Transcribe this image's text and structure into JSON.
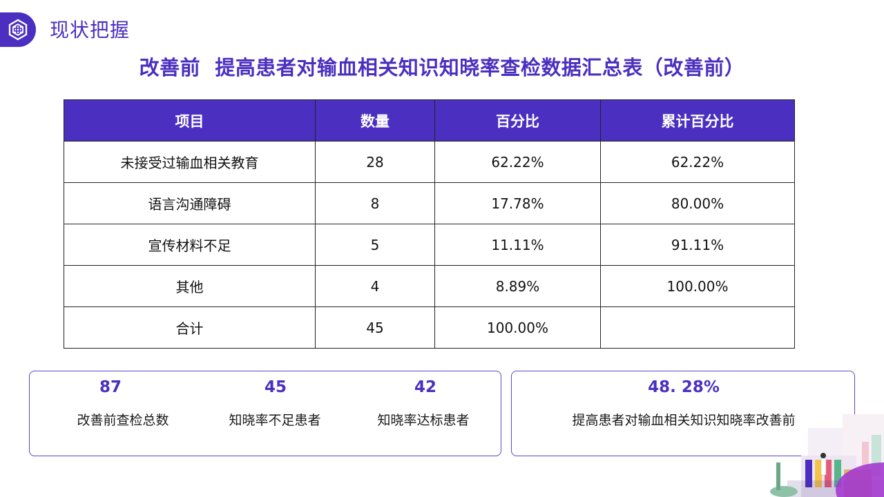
{
  "header": {
    "section_title": "现状把握",
    "main_title": "改善前  提高患者对输血相关知识知晓率查检数据汇总表（改善前）"
  },
  "table": {
    "columns": [
      "项目",
      "数量",
      "百分比",
      "累计百分比"
    ],
    "rows": [
      [
        "未接受过输血相关教育",
        "28",
        "62.22%",
        "62.22%"
      ],
      [
        "语言沟通障碍",
        "8",
        "17.78%",
        "80.00%"
      ],
      [
        "宣传材料不足",
        "5",
        "11.11%",
        "91.11%"
      ],
      [
        "其他",
        "4",
        "8.89%",
        "100.00%"
      ],
      [
        "合计",
        "45",
        "100.00%",
        ""
      ]
    ]
  },
  "stats": {
    "total": {
      "value": "87",
      "label": "改善前查检总数"
    },
    "insufficient": {
      "value": "45",
      "label": "知晓率不足患者"
    },
    "qualified": {
      "value": "42",
      "label": "知晓率达标患者"
    },
    "rate": {
      "value": "48. 28%",
      "label": "提高患者对输血相关知识知晓率改善前"
    }
  },
  "colors": {
    "accent": "#4a2fc0",
    "border": "#222222"
  },
  "icons": {
    "badge": "medical-cross-hexagon-icon"
  }
}
